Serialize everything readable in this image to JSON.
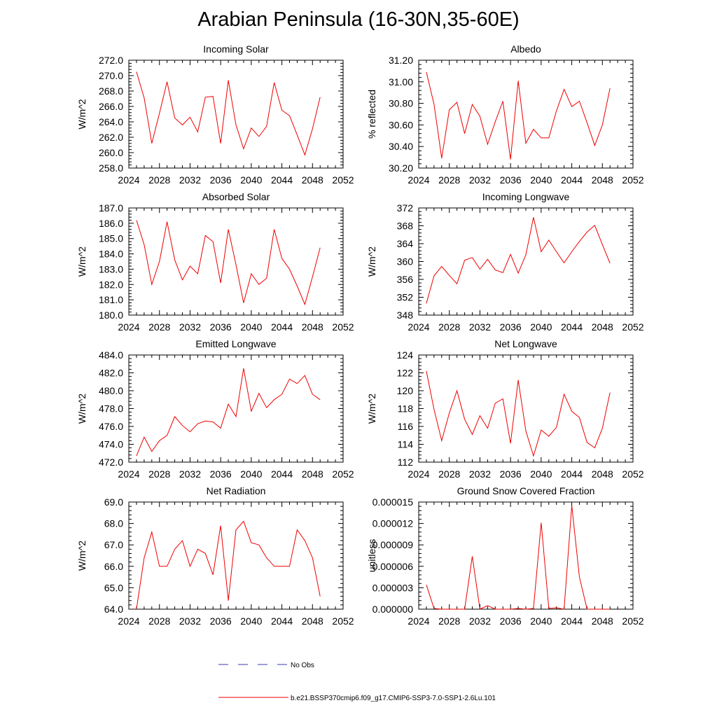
{
  "title": "Arabian Peninsula (16-30N,35-60E)",
  "legend": {
    "entries": [
      {
        "label": "No Obs",
        "color": "#3a3aaa",
        "style": "dashed"
      },
      {
        "label": "b.e21.BSSP370cmip6.f09_g17.CMIP6-SSP3-7.0-SSP1-2.6Lu.101",
        "color": "#ee0000",
        "style": "solid"
      }
    ]
  },
  "chart_data": [
    {
      "type": "line",
      "title": "Incoming Solar",
      "ylabel": "W/m^2",
      "xlim": [
        2024,
        2052
      ],
      "xticks": [
        2024,
        2028,
        2032,
        2036,
        2040,
        2044,
        2048,
        2052
      ],
      "xtick_labels": [
        "2024",
        "2028",
        "2032",
        "2036",
        "2040",
        "2044",
        "2048",
        "2052"
      ],
      "ylim": [
        258,
        272
      ],
      "yticks": [
        258,
        260,
        262,
        264,
        266,
        268,
        270,
        272
      ],
      "ytick_labels": [
        "258.0",
        "260.0",
        "262.0",
        "264.0",
        "266.0",
        "268.0",
        "270.0",
        "272.0"
      ],
      "color": "#ee0000",
      "x": [
        2025,
        2026,
        2027,
        2028,
        2029,
        2030,
        2031,
        2032,
        2033,
        2034,
        2035,
        2036,
        2037,
        2038,
        2039,
        2040,
        2041,
        2042,
        2043,
        2044,
        2045,
        2046,
        2047,
        2048,
        2049
      ],
      "y": [
        270.5,
        267.1,
        261.2,
        265.1,
        269.2,
        264.5,
        263.6,
        264.6,
        262.7,
        267.2,
        267.3,
        261.2,
        269.4,
        263.6,
        260.5,
        263.2,
        262.1,
        263.4,
        269.1,
        265.5,
        264.8,
        262.3,
        259.7,
        263.1,
        267.2
      ]
    },
    {
      "type": "line",
      "title": "Albedo",
      "ylabel": "% reflected",
      "xlim": [
        2024,
        2052
      ],
      "xticks": [
        2024,
        2028,
        2032,
        2036,
        2040,
        2044,
        2048,
        2052
      ],
      "xtick_labels": [
        "2024",
        "2028",
        "2032",
        "2036",
        "2040",
        "2044",
        "2048",
        "2052"
      ],
      "ylim": [
        30.2,
        31.2
      ],
      "yticks": [
        30.2,
        30.4,
        30.6,
        30.8,
        31.0,
        31.2
      ],
      "ytick_labels": [
        "30.20",
        "30.40",
        "30.60",
        "30.80",
        "31.00",
        "31.20"
      ],
      "color": "#ee0000",
      "x": [
        2025,
        2026,
        2027,
        2028,
        2029,
        2030,
        2031,
        2032,
        2033,
        2034,
        2035,
        2036,
        2037,
        2038,
        2039,
        2040,
        2041,
        2042,
        2043,
        2044,
        2045,
        2046,
        2047,
        2048,
        2049
      ],
      "y": [
        31.09,
        30.79,
        30.29,
        30.74,
        30.81,
        30.52,
        30.79,
        30.68,
        30.42,
        30.63,
        30.82,
        30.28,
        31.01,
        30.43,
        30.56,
        30.48,
        30.48,
        30.73,
        30.93,
        30.77,
        30.82,
        30.62,
        30.41,
        30.6,
        30.94
      ]
    },
    {
      "type": "line",
      "title": "Absorbed Solar",
      "ylabel": "W/m^2",
      "xlim": [
        2024,
        2052
      ],
      "xticks": [
        2024,
        2028,
        2032,
        2036,
        2040,
        2044,
        2048,
        2052
      ],
      "xtick_labels": [
        "2024",
        "2028",
        "2032",
        "2036",
        "2040",
        "2044",
        "2048",
        "2052"
      ],
      "ylim": [
        180,
        187
      ],
      "yticks": [
        180,
        181,
        182,
        183,
        184,
        185,
        186,
        187
      ],
      "ytick_labels": [
        "180.0",
        "181.0",
        "182.0",
        "183.0",
        "184.0",
        "185.0",
        "186.0",
        "187.0"
      ],
      "color": "#ee0000",
      "x": [
        2025,
        2026,
        2027,
        2028,
        2029,
        2030,
        2031,
        2032,
        2033,
        2034,
        2035,
        2036,
        2037,
        2038,
        2039,
        2040,
        2041,
        2042,
        2043,
        2044,
        2045,
        2046,
        2047,
        2048,
        2049
      ],
      "y": [
        186.2,
        184.6,
        182.0,
        183.5,
        186.1,
        183.6,
        182.3,
        183.2,
        182.7,
        185.2,
        184.8,
        182.1,
        185.6,
        183.3,
        180.8,
        182.7,
        182.0,
        182.4,
        185.6,
        183.7,
        183.0,
        181.9,
        180.7,
        182.5,
        184.4
      ]
    },
    {
      "type": "line",
      "title": "Incoming Longwave",
      "ylabel": "W/m^2",
      "xlim": [
        2024,
        2052
      ],
      "xticks": [
        2024,
        2028,
        2032,
        2036,
        2040,
        2044,
        2048,
        2052
      ],
      "xtick_labels": [
        "2024",
        "2028",
        "2032",
        "2036",
        "2040",
        "2044",
        "2048",
        "2052"
      ],
      "ylim": [
        348,
        372
      ],
      "yticks": [
        348,
        352,
        356,
        360,
        364,
        368,
        372
      ],
      "ytick_labels": [
        "348",
        "352",
        "356",
        "360",
        "364",
        "368",
        "372"
      ],
      "color": "#ee0000",
      "x": [
        2025,
        2026,
        2027,
        2028,
        2029,
        2030,
        2031,
        2032,
        2033,
        2034,
        2035,
        2036,
        2037,
        2038,
        2039,
        2040,
        2041,
        2042,
        2043,
        2044,
        2045,
        2046,
        2047,
        2048,
        2049
      ],
      "y": [
        350.6,
        356.8,
        358.9,
        356.9,
        355.0,
        360.3,
        360.9,
        358.3,
        360.5,
        358.1,
        357.5,
        361.6,
        357.4,
        361.5,
        369.9,
        362.2,
        364.8,
        362.2,
        359.7,
        362.2,
        364.5,
        366.6,
        368.1,
        363.8,
        359.6
      ]
    },
    {
      "type": "line",
      "title": "Emitted Longwave",
      "ylabel": "W/m^2",
      "xlim": [
        2024,
        2052
      ],
      "xticks": [
        2024,
        2028,
        2032,
        2036,
        2040,
        2044,
        2048,
        2052
      ],
      "xtick_labels": [
        "2024",
        "2028",
        "2032",
        "2036",
        "2040",
        "2044",
        "2048",
        "2052"
      ],
      "ylim": [
        472,
        484
      ],
      "yticks": [
        472,
        474,
        476,
        478,
        480,
        482,
        484
      ],
      "ytick_labels": [
        "472.0",
        "474.0",
        "476.0",
        "478.0",
        "480.0",
        "482.0",
        "484.0"
      ],
      "color": "#ee0000",
      "x": [
        2025,
        2026,
        2027,
        2028,
        2029,
        2030,
        2031,
        2032,
        2033,
        2034,
        2035,
        2036,
        2037,
        2038,
        2039,
        2040,
        2041,
        2042,
        2043,
        2044,
        2045,
        2046,
        2047,
        2048,
        2049
      ],
      "y": [
        472.7,
        474.8,
        473.2,
        474.4,
        475.0,
        477.1,
        476.1,
        475.4,
        476.3,
        476.6,
        476.5,
        475.8,
        478.5,
        477.1,
        482.5,
        477.7,
        479.7,
        478.1,
        479.0,
        479.6,
        481.3,
        480.8,
        481.7,
        479.6,
        479.0
      ]
    },
    {
      "type": "line",
      "title": "Net Longwave",
      "ylabel": "W/m^2",
      "xlim": [
        2024,
        2052
      ],
      "xticks": [
        2024,
        2028,
        2032,
        2036,
        2040,
        2044,
        2048,
        2052
      ],
      "xtick_labels": [
        "2024",
        "2028",
        "2032",
        "2036",
        "2040",
        "2044",
        "2048",
        "2052"
      ],
      "ylim": [
        112,
        124
      ],
      "yticks": [
        112,
        114,
        116,
        118,
        120,
        122,
        124
      ],
      "ytick_labels": [
        "112",
        "114",
        "116",
        "118",
        "120",
        "122",
        "124"
      ],
      "color": "#ee0000",
      "x": [
        2025,
        2026,
        2027,
        2028,
        2029,
        2030,
        2031,
        2032,
        2033,
        2034,
        2035,
        2036,
        2037,
        2038,
        2039,
        2040,
        2041,
        2042,
        2043,
        2044,
        2045,
        2046,
        2047,
        2048,
        2049
      ],
      "y": [
        122.2,
        117.9,
        114.4,
        117.5,
        120.0,
        116.8,
        115.1,
        117.2,
        115.8,
        118.6,
        119.1,
        114.1,
        121.2,
        115.5,
        112.7,
        115.6,
        114.9,
        115.9,
        119.6,
        117.7,
        117.0,
        114.2,
        113.6,
        115.8,
        119.8
      ]
    },
    {
      "type": "line",
      "title": "Net Radiation",
      "ylabel": "W/m^2",
      "xlim": [
        2024,
        2052
      ],
      "xticks": [
        2024,
        2028,
        2032,
        2036,
        2040,
        2044,
        2048,
        2052
      ],
      "xtick_labels": [
        "2024",
        "2028",
        "2032",
        "2036",
        "2040",
        "2044",
        "2048",
        "2052"
      ],
      "ylim": [
        64,
        69
      ],
      "yticks": [
        64,
        65,
        66,
        67,
        68,
        69
      ],
      "ytick_labels": [
        "64.0",
        "65.0",
        "66.0",
        "67.0",
        "68.0",
        "69.0"
      ],
      "color": "#ee0000",
      "x": [
        2025,
        2026,
        2027,
        2028,
        2029,
        2030,
        2031,
        2032,
        2033,
        2034,
        2035,
        2036,
        2037,
        2038,
        2039,
        2040,
        2041,
        2042,
        2043,
        2044,
        2045,
        2046,
        2047,
        2048,
        2049
      ],
      "y": [
        64.0,
        66.4,
        67.6,
        66.0,
        66.0,
        66.8,
        67.2,
        66.0,
        66.8,
        66.6,
        65.6,
        67.9,
        64.4,
        67.7,
        68.1,
        67.1,
        67.0,
        66.4,
        66.0,
        66.0,
        66.0,
        67.7,
        67.2,
        66.4,
        64.6
      ]
    },
    {
      "type": "line",
      "title": "Ground Snow Covered Fraction",
      "ylabel": "unitless",
      "xlim": [
        2024,
        2052
      ],
      "xticks": [
        2024,
        2028,
        2032,
        2036,
        2040,
        2044,
        2048,
        2052
      ],
      "xtick_labels": [
        "2024",
        "2028",
        "2032",
        "2036",
        "2040",
        "2044",
        "2048",
        "2052"
      ],
      "ylim": [
        0,
        1.5e-05
      ],
      "yticks": [
        0,
        3e-06,
        6e-06,
        9e-06,
        1.2e-05,
        1.5e-05
      ],
      "ytick_labels": [
        "0.000000",
        "0.000003",
        "0.000006",
        "0.000009",
        "0.000012",
        "0.000015"
      ],
      "color": "#ee0000",
      "x": [
        2025,
        2026,
        2027,
        2028,
        2029,
        2030,
        2031,
        2032,
        2033,
        2034,
        2035,
        2036,
        2037,
        2038,
        2039,
        2040,
        2041,
        2042,
        2043,
        2044,
        2045,
        2046,
        2047,
        2048,
        2049
      ],
      "y": [
        3.4e-06,
        1e-07,
        0.0,
        0.0,
        0.0,
        0.0,
        7.4e-06,
        0.0,
        5e-07,
        0.0,
        0.0,
        0.0,
        1e-07,
        0.0,
        1e-07,
        1.21e-05,
        1e-07,
        2e-07,
        0.0,
        1.45e-05,
        4.5e-06,
        0.0,
        0.0,
        0.0,
        0.0
      ]
    }
  ]
}
